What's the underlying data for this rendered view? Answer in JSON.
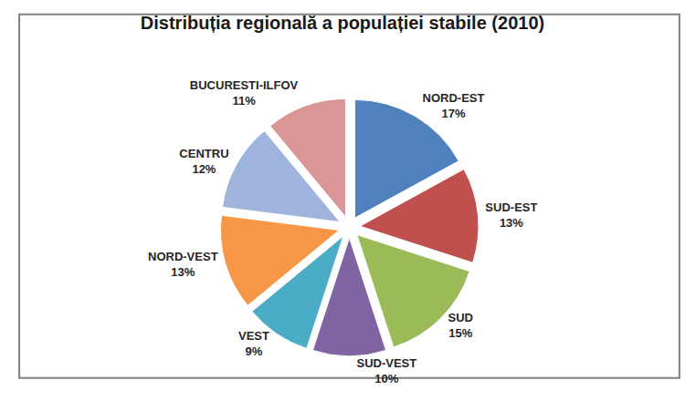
{
  "chart_data": {
    "type": "pie",
    "title": "Distribuția regională a populației stabile (2010)",
    "categories": [
      "NORD-EST",
      "SUD-EST",
      "SUD",
      "SUD-VEST",
      "VEST",
      "NORD-VEST",
      "CENTRU",
      "BUCURESTI-ILFOV"
    ],
    "values": [
      17,
      13,
      15,
      10,
      9,
      13,
      12,
      11
    ],
    "value_labels": [
      "17%",
      "13%",
      "15%",
      "10%",
      "9%",
      "13%",
      "12%",
      "11%"
    ],
    "colors": [
      "#4f81bd",
      "#c0504d",
      "#9bbb59",
      "#8064a2",
      "#4bacc6",
      "#f79646",
      "#9fb4dc",
      "#d99694"
    ],
    "data_labels": true
  }
}
